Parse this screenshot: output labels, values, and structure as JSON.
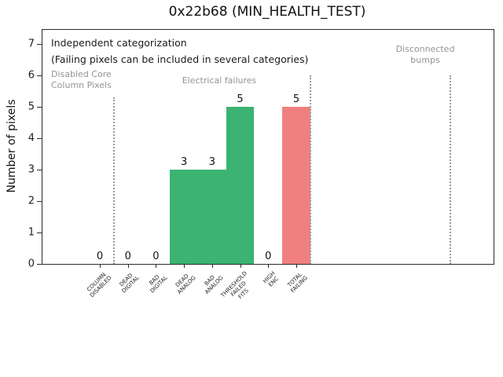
{
  "window": {
    "title": "0x22b68 (MIN_HEALTH_TEST)"
  },
  "chart_data": {
    "type": "bar",
    "title": "0x22b68 (MIN_HEALTH_TEST)",
    "xlabel": "",
    "ylabel": "Number of pixels",
    "ylim": [
      0,
      7.45
    ],
    "yticks": [
      0,
      1,
      2,
      3,
      4,
      5,
      6,
      7
    ],
    "grid": false,
    "legend_position": "none",
    "categories": [
      "COLUMN\nDISABLED",
      "DEAD\nDIGITAL",
      "BAD\nDIGITAL",
      "DEAD\nANALOG",
      "BAD\nANALOG",
      "THRESHOLD\nFAILED\nFITS",
      "HIGH\nENC",
      "TOTAL\nFAILING"
    ],
    "values": [
      0,
      0,
      0,
      3,
      3,
      5,
      0,
      5
    ],
    "value_labels": [
      "0",
      "0",
      "0",
      "3",
      "3",
      "5",
      "0",
      "5"
    ],
    "bar_colors": [
      "#3cb371",
      "#3cb371",
      "#3cb371",
      "#3cb371",
      "#3cb371",
      "#3cb371",
      "#3cb371",
      "#f08080"
    ],
    "colors": {
      "failure_category_green": "#3cb371",
      "total_failing_red": "#f08080",
      "muted_annotation_text": "#949494",
      "section_divider": "#9a9a9a"
    },
    "annotations": [
      {
        "lines": [
          "Independent categorization"
        ],
        "x": 64,
        "y": 46,
        "muted": false,
        "align": "left"
      },
      {
        "lines": [
          "(Failing pixels can be included in several categories)"
        ],
        "x": 64,
        "y": 67,
        "muted": false,
        "align": "left"
      },
      {
        "lines": [
          "Disabled Core",
          "Column Pixels"
        ],
        "x": 64,
        "y": 87,
        "muted": true,
        "align": "left"
      },
      {
        "lines": [
          "Electrical failures"
        ],
        "x": 278,
        "y": 95,
        "muted": true,
        "align": "center"
      },
      {
        "lines": [
          "Disconnected",
          "bumps"
        ],
        "x": 540,
        "y": 55,
        "muted": true,
        "align": "center"
      }
    ],
    "separators": [
      {
        "slot": 0.5,
        "top_value": 5.3
      },
      {
        "slot": 7.5,
        "top_value": 6
      },
      {
        "slot": 12.5,
        "top_value": 6
      }
    ]
  }
}
